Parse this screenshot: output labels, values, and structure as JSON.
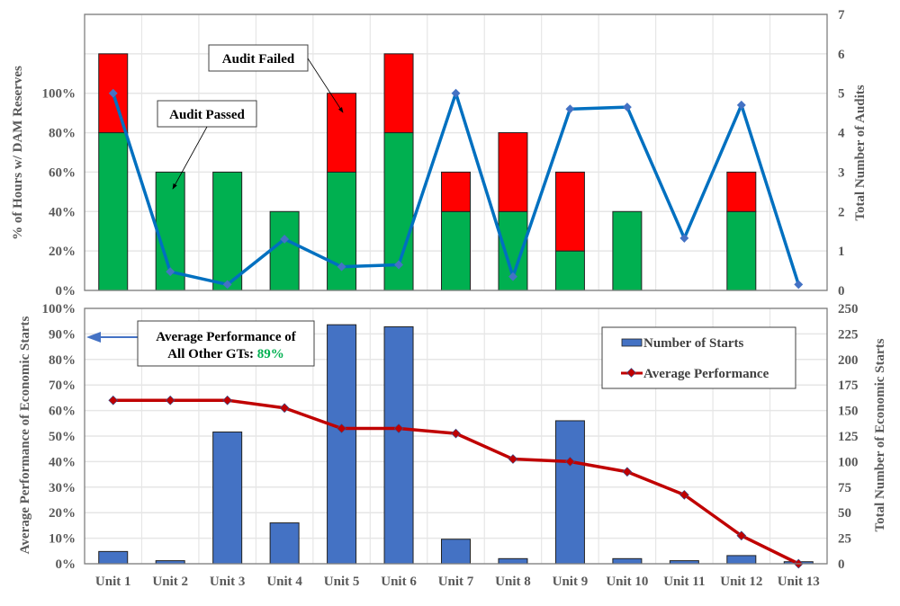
{
  "chart_data": [
    {
      "type": "bar+line",
      "categories": [
        "Unit 1",
        "Unit 2",
        "Unit 3",
        "Unit 4",
        "Unit 5",
        "Unit 6",
        "Unit 7",
        "Unit 8",
        "Unit 9",
        "Unit 10",
        "Unit 11",
        "Unit 12",
        "Unit 13"
      ],
      "series": [
        {
          "name": "Audit Passed",
          "kind": "stacked-bar",
          "axis": "right",
          "color": "#00B050",
          "values": [
            4,
            3,
            3,
            2,
            3,
            4,
            2,
            2,
            1,
            2,
            0,
            2,
            0
          ]
        },
        {
          "name": "Audit Failed",
          "kind": "stacked-bar",
          "axis": "right",
          "color": "#FF0000",
          "values": [
            2,
            0,
            0,
            0,
            2,
            2,
            1,
            2,
            2,
            0,
            0,
            1,
            0
          ]
        },
        {
          "kind": "line",
          "axis": "left",
          "color": "#0070C0",
          "values": [
            100,
            9.5,
            3,
            26,
            12,
            13,
            100,
            7,
            92,
            93,
            26.5,
            94,
            3
          ]
        }
      ],
      "ylabel": "% of Hours w/ DAM Reserves",
      "y2label": "Total Number of Audits",
      "yticks": [
        "0%",
        "20%",
        "40%",
        "60%",
        "80%",
        "100%"
      ],
      "y2ticks": [
        "0",
        "1",
        "2",
        "3",
        "4",
        "5",
        "6",
        "7"
      ],
      "ylim": [
        0,
        140
      ],
      "y2lim": [
        0,
        7
      ],
      "grid": true,
      "annotations": [
        "Audit Failed",
        "Audit Passed"
      ]
    },
    {
      "type": "bar+line",
      "categories": [
        "Unit 1",
        "Unit 2",
        "Unit 3",
        "Unit 4",
        "Unit 5",
        "Unit 6",
        "Unit 7",
        "Unit 8",
        "Unit 9",
        "Unit 10",
        "Unit 11",
        "Unit 12",
        "Unit 13"
      ],
      "series": [
        {
          "name": "Number of Starts",
          "kind": "bar",
          "axis": "right",
          "color": "#4472C4",
          "values": [
            12,
            3,
            129,
            40,
            234,
            232,
            24,
            5,
            140,
            5,
            3,
            8,
            2
          ]
        },
        {
          "name": "Average Performance",
          "kind": "line",
          "axis": "left",
          "color": "#C00000",
          "values": [
            64,
            64,
            64,
            61,
            53,
            53,
            51,
            41,
            40,
            36,
            27,
            11,
            0
          ]
        }
      ],
      "ylabel": "Average Performance of Economic Starts",
      "y2label": "Total Number of Economic Starts",
      "yticks": [
        "0%",
        "10%",
        "20%",
        "30%",
        "40%",
        "50%",
        "60%",
        "70%",
        "80%",
        "90%",
        "100%"
      ],
      "y2ticks": [
        "0",
        "25",
        "50",
        "75",
        "100",
        "125",
        "150",
        "175",
        "200",
        "225",
        "250"
      ],
      "ylim": [
        0,
        100
      ],
      "y2lim": [
        0,
        250
      ],
      "grid": true,
      "legend": "top-right",
      "callout": {
        "line1": "Average Performance of",
        "line2": "All Other GTs: ",
        "value": "89%",
        "value_color": "#00B050",
        "points_to": 89
      }
    }
  ]
}
